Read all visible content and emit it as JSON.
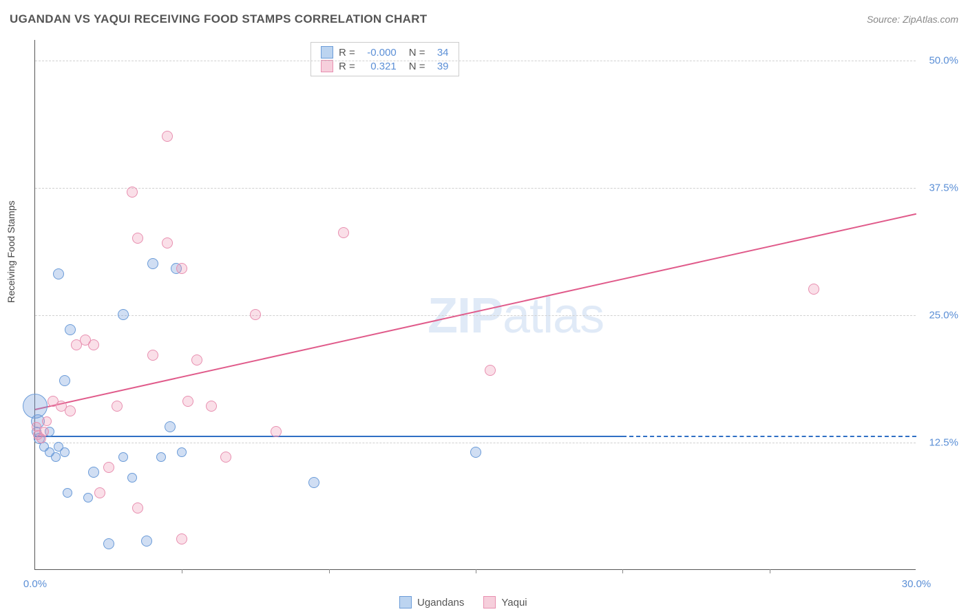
{
  "title": "UGANDAN VS YAQUI RECEIVING FOOD STAMPS CORRELATION CHART",
  "source": "Source: ZipAtlas.com",
  "y_axis_label": "Receiving Food Stamps",
  "watermark_1": "ZIP",
  "watermark_2": "atlas",
  "chart": {
    "type": "scatter",
    "background_color": "#ffffff",
    "grid_color": "#d0d0d0",
    "text_color": "#555555",
    "tick_color": "#5b8fd6",
    "xlim": [
      0,
      30
    ],
    "ylim": [
      0,
      52
    ],
    "y_ticks": [
      {
        "v": 12.5,
        "label": "12.5%"
      },
      {
        "v": 25.0,
        "label": "25.0%"
      },
      {
        "v": 37.5,
        "label": "37.5%"
      },
      {
        "v": 50.0,
        "label": "50.0%"
      }
    ],
    "x_ticks": [
      {
        "v": 0,
        "label": "0.0%"
      },
      {
        "v": 30,
        "label": "30.0%"
      }
    ],
    "x_tick_marks": [
      5,
      10,
      15,
      20,
      25
    ],
    "series": [
      {
        "name": "Ugandans",
        "fill": "rgba(120,160,220,0.35)",
        "stroke": "#6a9bd8",
        "swatch_fill": "#bcd4f0",
        "swatch_stroke": "#6a9bd8",
        "R_label": "R =",
        "R": "-0.000",
        "N_label": "N =",
        "N": "34",
        "trend_color": "#2f6fc4",
        "trend": {
          "x1": 0,
          "y1": 13.2,
          "x2": 20,
          "y2": 13.2
        },
        "trend_dash": {
          "x1": 20,
          "y1": 13.2,
          "x2": 30,
          "y2": 13.2
        },
        "points": [
          {
            "x": 0.0,
            "y": 16.0,
            "r": 18
          },
          {
            "x": 0.1,
            "y": 14.5,
            "r": 10
          },
          {
            "x": 0.05,
            "y": 13.5,
            "r": 7
          },
          {
            "x": 0.15,
            "y": 12.8,
            "r": 8
          },
          {
            "x": 0.3,
            "y": 12.0,
            "r": 7
          },
          {
            "x": 0.5,
            "y": 11.5,
            "r": 7
          },
          {
            "x": 0.5,
            "y": 13.5,
            "r": 7
          },
          {
            "x": 0.7,
            "y": 11.0,
            "r": 7
          },
          {
            "x": 0.8,
            "y": 12.0,
            "r": 7
          },
          {
            "x": 1.0,
            "y": 11.5,
            "r": 7
          },
          {
            "x": 1.0,
            "y": 18.5,
            "r": 8
          },
          {
            "x": 1.1,
            "y": 7.5,
            "r": 7
          },
          {
            "x": 1.8,
            "y": 7.0,
            "r": 7
          },
          {
            "x": 2.5,
            "y": 2.5,
            "r": 8
          },
          {
            "x": 0.8,
            "y": 29.0,
            "r": 8
          },
          {
            "x": 1.2,
            "y": 23.5,
            "r": 8
          },
          {
            "x": 2.0,
            "y": 9.5,
            "r": 8
          },
          {
            "x": 3.0,
            "y": 25.0,
            "r": 8
          },
          {
            "x": 3.0,
            "y": 11.0,
            "r": 7
          },
          {
            "x": 3.3,
            "y": 9.0,
            "r": 7
          },
          {
            "x": 3.8,
            "y": 2.8,
            "r": 8
          },
          {
            "x": 4.0,
            "y": 30.0,
            "r": 8
          },
          {
            "x": 4.3,
            "y": 11.0,
            "r": 7
          },
          {
            "x": 4.6,
            "y": 14.0,
            "r": 8
          },
          {
            "x": 4.8,
            "y": 29.5,
            "r": 8
          },
          {
            "x": 5.0,
            "y": 11.5,
            "r": 7
          },
          {
            "x": 9.5,
            "y": 8.5,
            "r": 8
          },
          {
            "x": 15.0,
            "y": 11.5,
            "r": 8
          }
        ]
      },
      {
        "name": "Yaqui",
        "fill": "rgba(240,150,180,0.30)",
        "stroke": "#e88fb0",
        "swatch_fill": "#f6cfdc",
        "swatch_stroke": "#e88fb0",
        "R_label": "R =",
        "R": "0.321",
        "N_label": "N =",
        "N": "39",
        "trend_color": "#e05a8a",
        "trend": {
          "x1": 0,
          "y1": 15.8,
          "x2": 30,
          "y2": 35.0
        },
        "points": [
          {
            "x": 0.05,
            "y": 14.0,
            "r": 7
          },
          {
            "x": 0.1,
            "y": 13.2,
            "r": 7
          },
          {
            "x": 0.2,
            "y": 12.8,
            "r": 7
          },
          {
            "x": 0.3,
            "y": 13.5,
            "r": 7
          },
          {
            "x": 0.4,
            "y": 14.5,
            "r": 7
          },
          {
            "x": 0.6,
            "y": 16.5,
            "r": 8
          },
          {
            "x": 0.9,
            "y": 16.0,
            "r": 8
          },
          {
            "x": 1.2,
            "y": 15.5,
            "r": 8
          },
          {
            "x": 1.4,
            "y": 22.0,
            "r": 8
          },
          {
            "x": 1.7,
            "y": 22.5,
            "r": 8
          },
          {
            "x": 2.0,
            "y": 22.0,
            "r": 8
          },
          {
            "x": 2.2,
            "y": 7.5,
            "r": 8
          },
          {
            "x": 2.5,
            "y": 10.0,
            "r": 8
          },
          {
            "x": 2.8,
            "y": 16.0,
            "r": 8
          },
          {
            "x": 3.5,
            "y": 32.5,
            "r": 8
          },
          {
            "x": 3.3,
            "y": 37.0,
            "r": 8
          },
          {
            "x": 3.5,
            "y": 6.0,
            "r": 8
          },
          {
            "x": 4.0,
            "y": 21.0,
            "r": 8
          },
          {
            "x": 4.5,
            "y": 32.0,
            "r": 8
          },
          {
            "x": 4.5,
            "y": 42.5,
            "r": 8
          },
          {
            "x": 5.0,
            "y": 29.5,
            "r": 8
          },
          {
            "x": 5.0,
            "y": 3.0,
            "r": 8
          },
          {
            "x": 5.2,
            "y": 16.5,
            "r": 8
          },
          {
            "x": 5.5,
            "y": 20.5,
            "r": 8
          },
          {
            "x": 6.0,
            "y": 16.0,
            "r": 8
          },
          {
            "x": 6.5,
            "y": 11.0,
            "r": 8
          },
          {
            "x": 7.5,
            "y": 25.0,
            "r": 8
          },
          {
            "x": 8.2,
            "y": 13.5,
            "r": 8
          },
          {
            "x": 10.5,
            "y": 33.0,
            "r": 8
          },
          {
            "x": 15.5,
            "y": 19.5,
            "r": 8
          },
          {
            "x": 26.5,
            "y": 27.5,
            "r": 8
          }
        ]
      }
    ]
  }
}
